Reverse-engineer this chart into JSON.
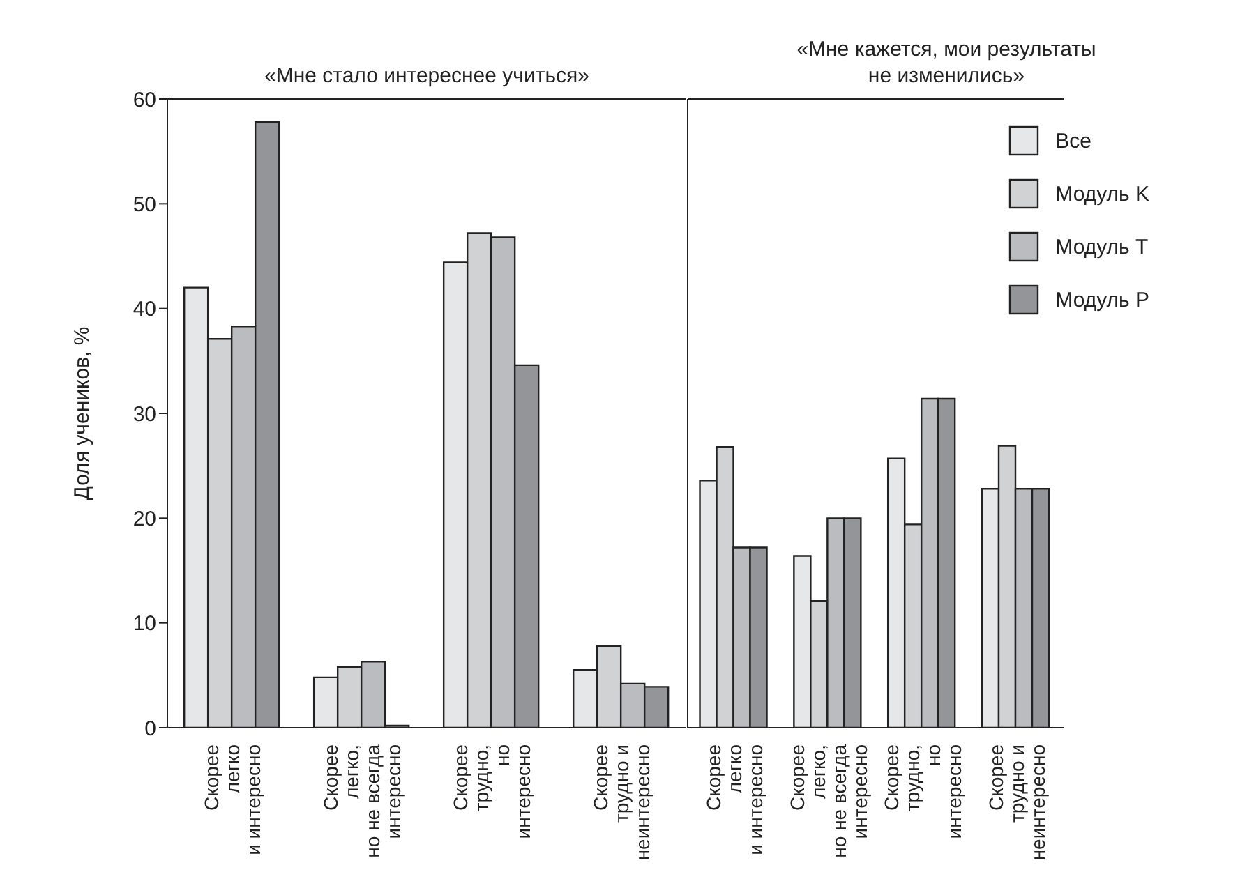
{
  "chart_data": [
    {
      "type": "bar",
      "title": "«Мне стало интереснее учиться»",
      "ylabel": "Доля учеников, %",
      "categories": [
        "Скорее\nлегко\nи интересно",
        "Скорее\nлегко,\nно не всегда\nинтересно",
        "Скорее\nтрудно,\nно\nинтересно",
        "Скорее\nтрудно и\nнеинтересно"
      ],
      "series": [
        {
          "color": "#e6e7e8",
          "values": [
            42,
            4.8,
            44.4,
            5.5
          ]
        },
        {
          "color": "#d1d2d4",
          "values": [
            37.1,
            5.8,
            47.2,
            7.8
          ]
        },
        {
          "color": "#bbbcbf",
          "values": [
            38.3,
            6.3,
            46.8,
            4.2
          ]
        },
        {
          "color": "#939598",
          "values": [
            57.8,
            0.2,
            34.6,
            3.9
          ]
        }
      ],
      "ylim": [
        0,
        60
      ],
      "yticks": [
        0,
        10,
        20,
        30,
        40,
        50,
        60
      ],
      "grid": false,
      "legend": false
    },
    {
      "type": "bar",
      "title": "«Мне кажется, мои результаты\nне изменились»",
      "categories": [
        "Скорее\nлегко\nи интересно",
        "Скорее\nлегко,\nно не всегда\nинтересно",
        "Скорее\nтрудно,\nно\nинтересно",
        "Скорее\nтрудно и\nнеинтересно"
      ],
      "series": [
        {
          "name": "Все",
          "color": "#e6e7e8",
          "values": [
            23.6,
            16.4,
            25.7,
            22.8
          ]
        },
        {
          "name": "Модуль K",
          "color": "#d1d2d4",
          "values": [
            26.8,
            12.1,
            19.4,
            26.9
          ]
        },
        {
          "name": "Модуль T",
          "color": "#bbbcbf",
          "values": [
            17.2,
            20,
            31.4,
            22.8
          ]
        },
        {
          "name": "Модуль P",
          "color": "#939598",
          "values": [
            17.2,
            20,
            31.4,
            22.8
          ]
        }
      ],
      "ylim": [
        0,
        60
      ],
      "tick_labels": "x",
      "grid": false,
      "legend": "top right"
    }
  ]
}
